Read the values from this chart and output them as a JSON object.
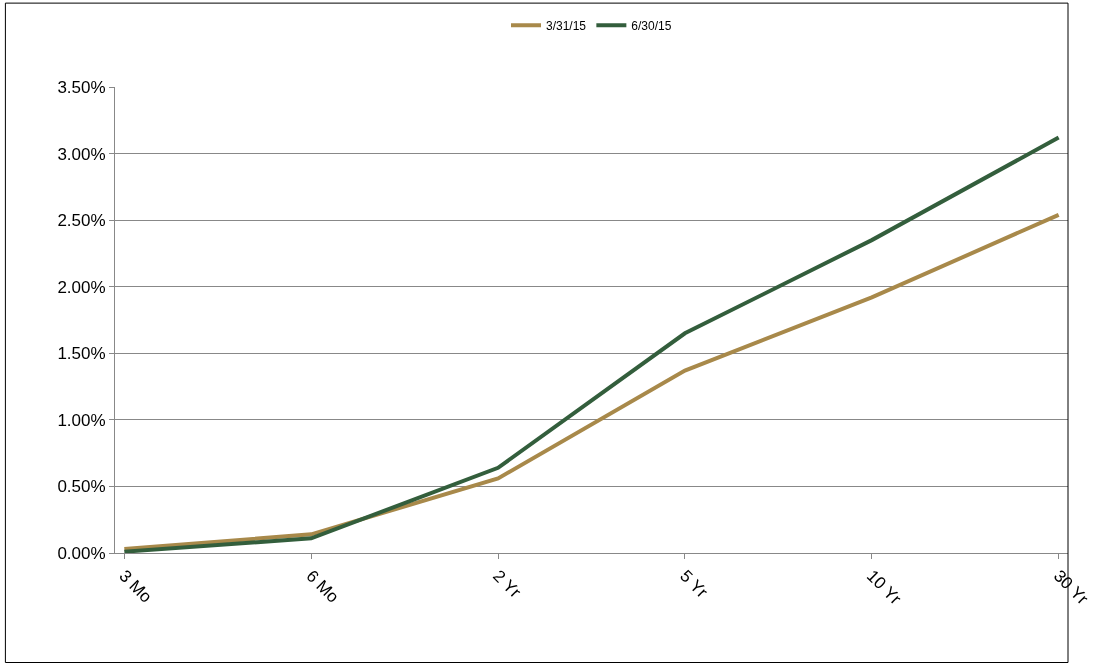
{
  "chart_data": {
    "type": "line",
    "categories": [
      "3 Mo",
      "6 Mo",
      "2 Yr",
      "5 Yr",
      "10 Yr",
      "30 Yr"
    ],
    "series": [
      {
        "name": "3/31/15",
        "color": "#a8894a",
        "values": [
          0.03,
          0.14,
          0.56,
          1.37,
          1.92,
          2.54
        ]
      },
      {
        "name": "6/30/15",
        "color": "#335e3c",
        "values": [
          0.01,
          0.11,
          0.64,
          1.65,
          2.35,
          3.12
        ]
      }
    ],
    "ylim": [
      0,
      3.5
    ],
    "yticks": [
      {
        "value": 0,
        "label": "0.00%"
      },
      {
        "value": 0.5,
        "label": "0.50%"
      },
      {
        "value": 1,
        "label": "1.00%"
      },
      {
        "value": 1.5,
        "label": "1.50%"
      },
      {
        "value": 2,
        "label": "2.00%"
      },
      {
        "value": 2.5,
        "label": "2.50%"
      },
      {
        "value": 3,
        "label": "3.00%"
      },
      {
        "value": 3.5,
        "label": "3.50%"
      }
    ],
    "grid": "y",
    "legend": "top",
    "marker": "none",
    "line_style": "solid"
  }
}
